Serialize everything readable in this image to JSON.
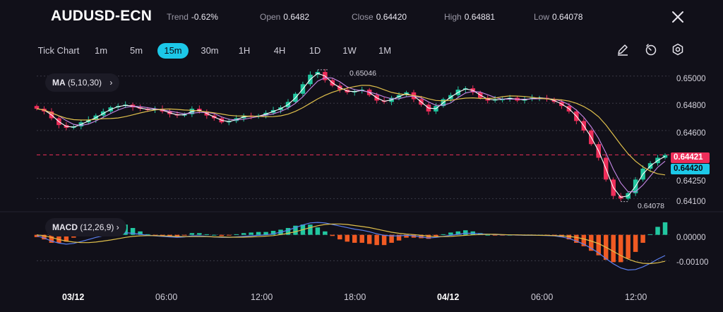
{
  "header": {
    "symbol": "AUDUSD-ECN",
    "trend_label": "Trend",
    "trend_value": "-0.62%",
    "open_label": "Open",
    "open_value": "0.6482",
    "close_label": "Close",
    "close_value": "0.64420",
    "high_label": "High",
    "high_value": "0.64881",
    "low_label": "Low",
    "low_value": "0.64078"
  },
  "timeframes": [
    "Tick Chart",
    "1m",
    "5m",
    "15m",
    "30m",
    "1H",
    "4H",
    "1D",
    "1W",
    "1M"
  ],
  "active_timeframe": "15m",
  "tools": [
    "draw-pen-icon",
    "timer-icon",
    "settings-icon"
  ],
  "indicators": {
    "ma_name": "MA",
    "ma_params": "(5,10,30)",
    "macd_name": "MACD",
    "macd_params": "(12,26,9)"
  },
  "price_axis": [
    "0.65000",
    "0.64800",
    "0.64600",
    "0.64250",
    "0.64100"
  ],
  "price_badges": {
    "last": "0.64421",
    "close": "0.64420"
  },
  "annotations": {
    "high_mark": "0.65046",
    "low_mark": "0.64078"
  },
  "macd_axis": [
    "0.00000",
    "-0.00100"
  ],
  "time_axis": [
    {
      "label": "03/12",
      "bold": true
    },
    {
      "label": "06:00",
      "bold": false
    },
    {
      "label": "12:00",
      "bold": false
    },
    {
      "label": "18:00",
      "bold": false
    },
    {
      "label": "04/12",
      "bold": true
    },
    {
      "label": "06:00",
      "bold": false
    },
    {
      "label": "12:00",
      "bold": false
    }
  ],
  "colors": {
    "bg": "#111019",
    "up": "#22c7a0",
    "down": "#ee2e5a",
    "ma5": "#ffffff",
    "ma10": "#c889e8",
    "ma30": "#e0c04c",
    "macd_line": "#5b7ff0",
    "signal_line": "#e0c04c",
    "hist_up": "#22c7a0",
    "hist_down": "#f05a23",
    "accent": "#1cc8e8"
  },
  "chart_data": {
    "type": "candlestick",
    "close_path": [
      0.6476,
      0.6474,
      0.6469,
      0.6464,
      0.6462,
      0.6463,
      0.6466,
      0.6468,
      0.6471,
      0.6474,
      0.6477,
      0.6478,
      0.6479,
      0.6477,
      0.6476,
      0.6475,
      0.6476,
      0.6474,
      0.6472,
      0.6471,
      0.6472,
      0.6476,
      0.6474,
      0.6471,
      0.6469,
      0.6466,
      0.6467,
      0.6469,
      0.6471,
      0.647,
      0.6471,
      0.6473,
      0.6475,
      0.6477,
      0.6481,
      0.6487,
      0.6494,
      0.6501,
      0.6503,
      0.6497,
      0.6493,
      0.649,
      0.6488,
      0.6489,
      0.649,
      0.6486,
      0.6482,
      0.6481,
      0.6484,
      0.6486,
      0.6488,
      0.6483,
      0.6479,
      0.6474,
      0.6478,
      0.6483,
      0.6486,
      0.649,
      0.6491,
      0.6488,
      0.6484,
      0.6482,
      0.6483,
      0.6483,
      0.6484,
      0.6482,
      0.6483,
      0.6484,
      0.6484,
      0.6483,
      0.6481,
      0.6478,
      0.6474,
      0.6467,
      0.646,
      0.645,
      0.644,
      0.6424,
      0.6412,
      0.641,
      0.6414,
      0.6424,
      0.6432,
      0.6436,
      0.644,
      0.6442
    ],
    "high_mark": 0.65046,
    "low_mark": 0.64078,
    "last": 0.64421,
    "ylim": [
      0.6405,
      0.6504
    ],
    "macd": {
      "macd_line": [
        -4e-05,
        -0.00012,
        -0.00024,
        -0.00032,
        -0.00036,
        -0.00033,
        -0.00026,
        -0.00018,
        -0.0001,
        -4e-05,
        2e-05,
        6e-05,
        8e-05,
        6e-05,
        2e-05,
        -2e-05,
        -4e-05,
        -6e-05,
        -8e-05,
        -0.0001,
        -8e-05,
        -4e-05,
        -4e-05,
        -6e-05,
        -8e-05,
        -0.0001,
        -0.0001,
        -8e-05,
        -6e-05,
        -4e-05,
        -2e-05,
        0.0,
        4e-05,
        0.0001,
        0.00018,
        0.00028,
        0.00038,
        0.00046,
        0.00048,
        0.00046,
        0.0004,
        0.00034,
        0.00028,
        0.00022,
        0.00018,
        0.00012,
        4e-05,
        -2e-05,
        -4e-05,
        -4e-05,
        -2e-05,
        -4e-05,
        -8e-05,
        -0.00012,
        -0.0001,
        -6e-05,
        -2e-05,
        2e-05,
        6e-05,
        6e-05,
        4e-05,
        2e-05,
        1e-05,
        0.0,
        0.0,
        -1e-05,
        -2e-05,
        -2e-05,
        -2e-05,
        -3e-05,
        -4e-05,
        -8e-05,
        -0.00014,
        -0.00024,
        -0.00036,
        -0.00052,
        -0.0007,
        -0.00092,
        -0.00112,
        -0.00128,
        -0.00136,
        -0.00134,
        -0.00124,
        -0.0011,
        -0.00094,
        -0.0008
      ],
      "signal_line": [
        0.0,
        -4e-05,
        -0.0001,
        -0.00018,
        -0.00024,
        -0.00028,
        -0.0003,
        -0.0003,
        -0.00028,
        -0.00024,
        -0.0002,
        -0.00015,
        -0.0001,
        -6e-05,
        -4e-05,
        -3e-05,
        -3e-05,
        -4e-05,
        -5e-05,
        -6e-05,
        -7e-05,
        -7e-05,
        -7e-05,
        -7e-05,
        -8e-05,
        -8e-05,
        -9e-05,
        -9e-05,
        -9e-05,
        -8e-05,
        -7e-05,
        -5e-05,
        -3e-05,
        1e-05,
        6e-05,
        0.00012,
        0.0002,
        0.00028,
        0.00035,
        0.0004,
        0.00042,
        0.00042,
        0.0004,
        0.00036,
        0.00032,
        0.00028,
        0.00022,
        0.00016,
        0.0001,
        6e-05,
        3e-05,
        1e-05,
        -2e-05,
        -5e-05,
        -7e-05,
        -7e-05,
        -6e-05,
        -4e-05,
        -2e-05,
        0.0,
        1e-05,
        2e-05,
        2e-05,
        1e-05,
        0.0,
        0.0,
        -1e-05,
        -1e-05,
        -2e-05,
        -2e-05,
        -3e-05,
        -4e-05,
        -6e-05,
        -0.0001,
        -0.00016,
        -0.00024,
        -0.00034,
        -0.00048,
        -0.00064,
        -0.0008,
        -0.00094,
        -0.00104,
        -0.0011,
        -0.00111,
        -0.00108,
        -0.00102
      ],
      "ylim": [
        -0.0017,
        0.0007
      ]
    }
  }
}
